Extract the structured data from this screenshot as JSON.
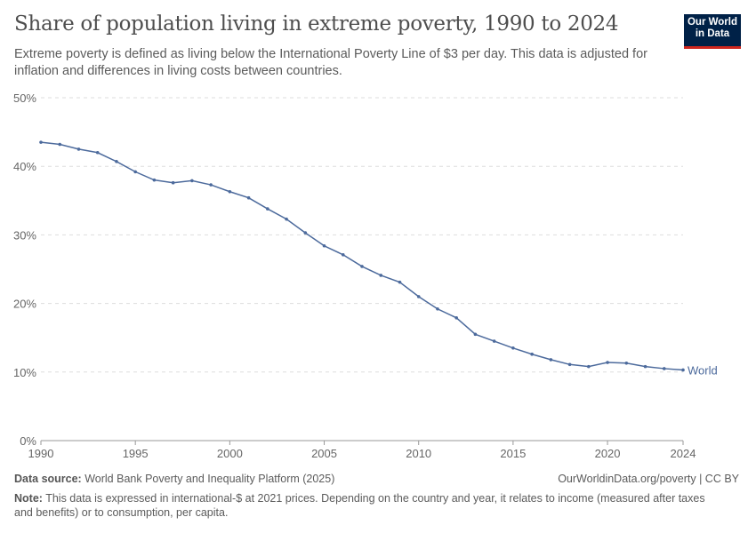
{
  "header": {
    "title": "Share of population living in extreme poverty, 1990 to 2024",
    "subtitle": "Extreme poverty is defined as living below the International Poverty Line of $3 per day. This data is adjusted for inflation and differences in living costs between countries.",
    "logo": [
      "Our World",
      "in Data"
    ]
  },
  "chart_data": {
    "type": "line",
    "title": "Share of population living in extreme poverty, 1990 to 2024",
    "xlim": [
      1990,
      2024
    ],
    "ylim": [
      0,
      50
    ],
    "y_ticks": [
      "0%",
      "10%",
      "20%",
      "30%",
      "40%",
      "50%"
    ],
    "x_ticks": [
      "1990",
      "1995",
      "2000",
      "2005",
      "2010",
      "2015",
      "2020",
      "2024"
    ],
    "grid": "horizontal dashed",
    "series": [
      {
        "name": "World",
        "color": "#4c6a9c",
        "x": [
          1990,
          1991,
          1992,
          1993,
          1994,
          1995,
          1996,
          1997,
          1998,
          1999,
          2000,
          2001,
          2002,
          2003,
          2004,
          2005,
          2006,
          2007,
          2008,
          2009,
          2010,
          2011,
          2012,
          2013,
          2014,
          2015,
          2016,
          2017,
          2018,
          2019,
          2020,
          2021,
          2022,
          2023,
          2024
        ],
        "y": [
          43.5,
          43.2,
          42.5,
          42.0,
          40.7,
          39.2,
          38.0,
          37.6,
          37.9,
          37.3,
          36.3,
          35.4,
          33.8,
          32.3,
          30.3,
          28.4,
          27.1,
          25.4,
          24.1,
          23.1,
          21.0,
          19.2,
          17.9,
          15.5,
          14.5,
          13.5,
          12.6,
          11.8,
          11.1,
          10.8,
          11.4,
          11.3,
          10.8,
          10.5,
          10.3
        ]
      }
    ]
  },
  "footer": {
    "source_label": "Data source:",
    "source": "World Bank Poverty and Inequality Platform (2025)",
    "url": "OurWorldinData.org/poverty | CC BY",
    "note_label": "Note:",
    "note": "This data is expressed in international-$ at 2021 prices. Depending on the country and year, it relates to income (measured after taxes and benefits) or to consumption, per capita."
  }
}
